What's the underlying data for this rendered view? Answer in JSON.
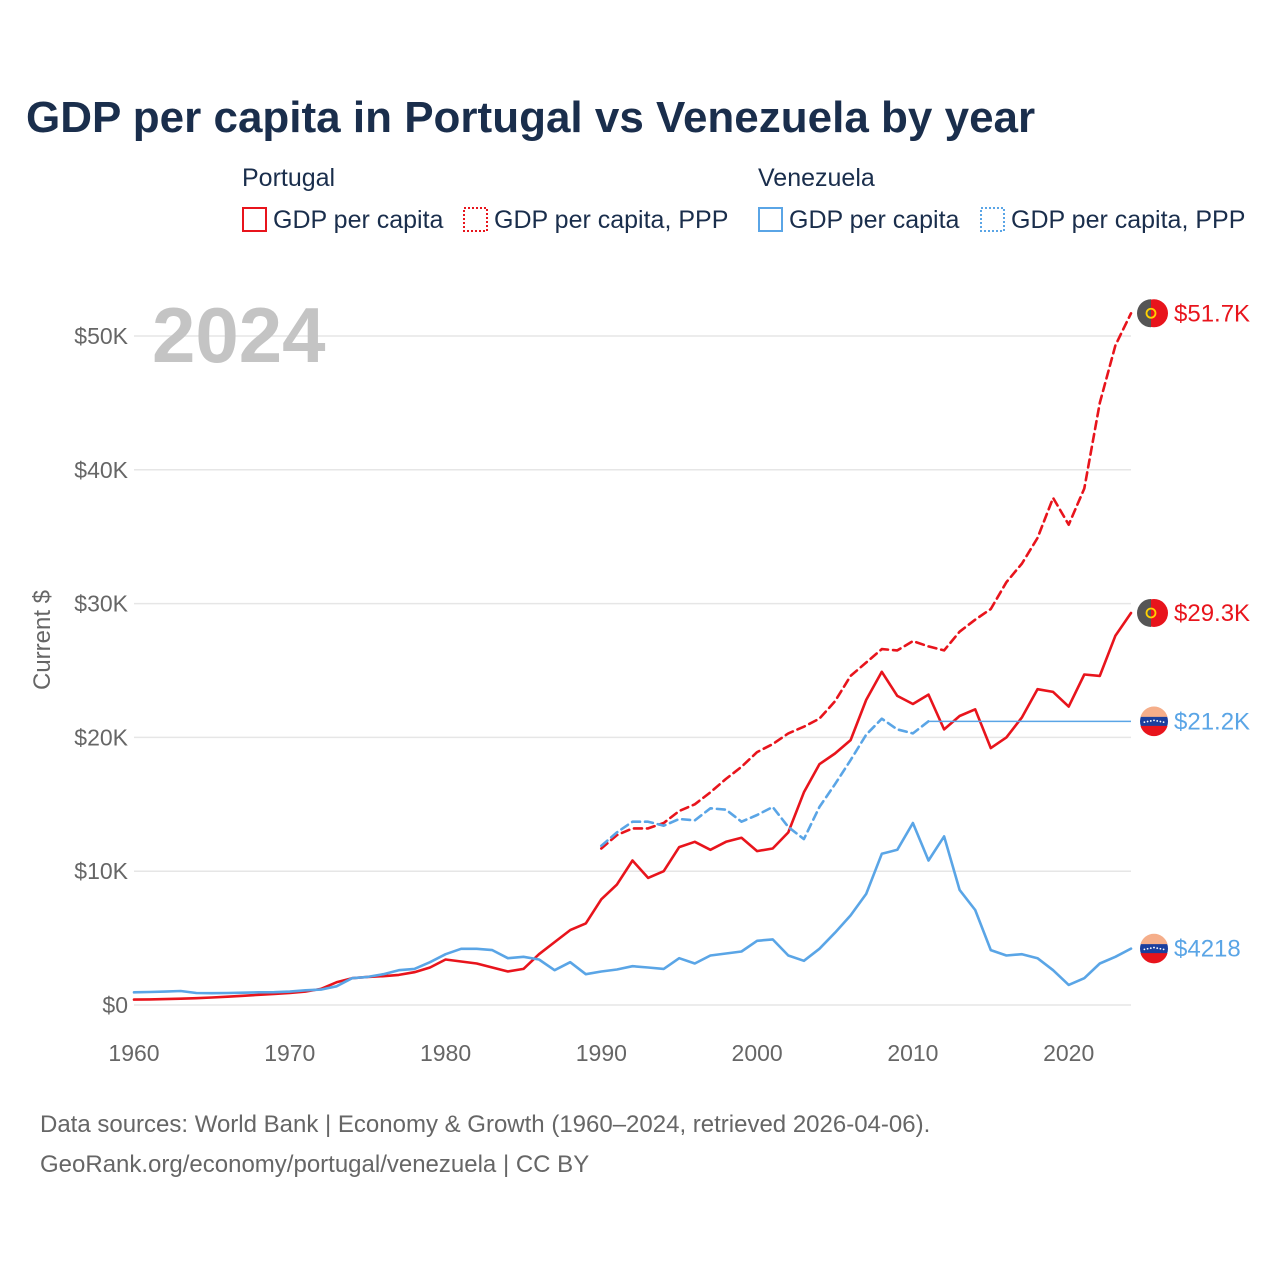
{
  "colors": {
    "portugal": "#e8141c",
    "venezuela": "#5aa5e6",
    "grid": "#e6e6e6",
    "title": "#1a2e4c",
    "muted": "#666666",
    "stamp": "#c4c4c4"
  },
  "chart_data": {
    "type": "line",
    "title": "GDP per capita in Portugal vs Venezuela by year",
    "ylabel": "Current $",
    "xlabel": "",
    "xlim": [
      1960,
      2024
    ],
    "ylim": [
      0,
      52000
    ],
    "x_ticks": [
      1960,
      1970,
      1980,
      1990,
      2000,
      2010,
      2020
    ],
    "x_tick_labels": [
      "1960",
      "1970",
      "1980",
      "1990",
      "2000",
      "2010",
      "2020"
    ],
    "y_ticks": [
      0,
      10000,
      20000,
      30000,
      40000,
      50000
    ],
    "y_tick_labels": [
      "$0",
      "$10K",
      "$20K",
      "$30K",
      "$40K",
      "$50K"
    ],
    "grid": true,
    "year_stamp": "2024",
    "legend": {
      "groups": [
        {
          "name": "Portugal",
          "items": [
            "GDP per capita",
            "GDP per capita, PPP"
          ]
        },
        {
          "name": "Venezuela",
          "items": [
            "GDP per capita",
            "GDP per capita, PPP"
          ]
        }
      ],
      "placement": "top"
    },
    "series": [
      {
        "name": "Portugal GDP per capita",
        "country": "portugal",
        "style": "solid",
        "end_label": "$29.3K",
        "x": [
          1960,
          1961,
          1962,
          1963,
          1964,
          1965,
          1966,
          1967,
          1968,
          1969,
          1970,
          1971,
          1972,
          1973,
          1974,
          1975,
          1976,
          1977,
          1978,
          1979,
          1980,
          1981,
          1982,
          1983,
          1984,
          1985,
          1986,
          1987,
          1988,
          1989,
          1990,
          1991,
          1992,
          1993,
          1994,
          1995,
          1996,
          1997,
          1998,
          1999,
          2000,
          2001,
          2002,
          2003,
          2004,
          2005,
          2006,
          2007,
          2008,
          2009,
          2010,
          2011,
          2012,
          2013,
          2014,
          2015,
          2016,
          2017,
          2018,
          2019,
          2020,
          2021,
          2022,
          2023,
          2024
        ],
        "values": [
          400,
          420,
          440,
          470,
          510,
          560,
          620,
          690,
          760,
          830,
          900,
          1000,
          1200,
          1700,
          2000,
          2100,
          2150,
          2250,
          2450,
          2800,
          3400,
          3250,
          3100,
          2800,
          2500,
          2700,
          3800,
          4700,
          5600,
          6100,
          7900,
          9000,
          10800,
          9500,
          10000,
          11800,
          12200,
          11600,
          12200,
          12500,
          11500,
          11700,
          12900,
          15900,
          18000,
          18800,
          19800,
          22800,
          24900,
          23100,
          22500,
          23200,
          20600,
          21600,
          22100,
          19200,
          20000,
          21500,
          23600,
          23400,
          22300,
          24700,
          24600,
          27600,
          29300
        ]
      },
      {
        "name": "Portugal GDP per capita, PPP",
        "country": "portugal",
        "style": "dashed",
        "end_label": "$51.7K",
        "x": [
          1990,
          1991,
          1992,
          1993,
          1994,
          1995,
          1996,
          1997,
          1998,
          1999,
          2000,
          2001,
          2002,
          2003,
          2004,
          2005,
          2006,
          2007,
          2008,
          2009,
          2010,
          2011,
          2012,
          2013,
          2014,
          2015,
          2016,
          2017,
          2018,
          2019,
          2020,
          2021,
          2022,
          2023,
          2024
        ],
        "values": [
          11700,
          12700,
          13200,
          13200,
          13600,
          14500,
          15000,
          15900,
          16900,
          17800,
          18900,
          19500,
          20300,
          20800,
          21400,
          22700,
          24600,
          25600,
          26600,
          26500,
          27200,
          26800,
          26500,
          27900,
          28800,
          29600,
          31600,
          33000,
          34900,
          37900,
          35900,
          38600,
          45000,
          49300,
          51700
        ]
      },
      {
        "name": "Venezuela GDP per capita",
        "country": "venezuela",
        "style": "solid",
        "end_label": "$4218",
        "x": [
          1960,
          1961,
          1962,
          1963,
          1964,
          1965,
          1966,
          1967,
          1968,
          1969,
          1970,
          1971,
          1972,
          1973,
          1974,
          1975,
          1976,
          1977,
          1978,
          1979,
          1980,
          1981,
          1982,
          1983,
          1984,
          1985,
          1986,
          1987,
          1988,
          1989,
          1990,
          1991,
          1992,
          1993,
          1994,
          1995,
          1996,
          1997,
          1998,
          1999,
          2000,
          2001,
          2002,
          2003,
          2004,
          2005,
          2006,
          2007,
          2008,
          2009,
          2010,
          2011,
          2012,
          2013,
          2014,
          2015,
          2016,
          2017,
          2018,
          2019,
          2020,
          2021,
          2022,
          2023,
          2024
        ],
        "values": [
          950,
          970,
          1000,
          1050,
          900,
          880,
          900,
          920,
          950,
          960,
          1000,
          1100,
          1150,
          1400,
          2000,
          2100,
          2300,
          2600,
          2700,
          3200,
          3800,
          4200,
          4200,
          4100,
          3500,
          3600,
          3400,
          2600,
          3200,
          2300,
          2500,
          2650,
          2900,
          2800,
          2700,
          3500,
          3100,
          3700,
          3850,
          4000,
          4800,
          4900,
          3700,
          3300,
          4200,
          5400,
          6700,
          8300,
          11300,
          11600,
          13600,
          10800,
          12600,
          8600,
          7100,
          4100,
          3700,
          3800,
          3500,
          2600,
          1500,
          2000,
          3100,
          3600,
          4218
        ]
      },
      {
        "name": "Venezuela GDP per capita, PPP",
        "country": "venezuela",
        "style": "dashed",
        "end_label": "$21.2K",
        "x": [
          1990,
          1991,
          1992,
          1993,
          1994,
          1995,
          1996,
          1997,
          1998,
          1999,
          2000,
          2001,
          2002,
          2003,
          2004,
          2005,
          2006,
          2007,
          2008,
          2009,
          2010,
          2011
        ],
        "values": [
          11900,
          12900,
          13700,
          13700,
          13400,
          13900,
          13800,
          14700,
          14600,
          13700,
          14200,
          14800,
          13300,
          12400,
          14800,
          16500,
          18300,
          20200,
          21400,
          20600,
          20300,
          21200
        ],
        "carry_forward_to": 2024,
        "carry_forward_value": 21200
      }
    ]
  },
  "footer": {
    "line1": "Data sources: World Bank | Economy & Growth (1960–2024, retrieved 2026-04-06).",
    "line2": "GeoRank.org/economy/portugal/venezuela | CC BY"
  }
}
